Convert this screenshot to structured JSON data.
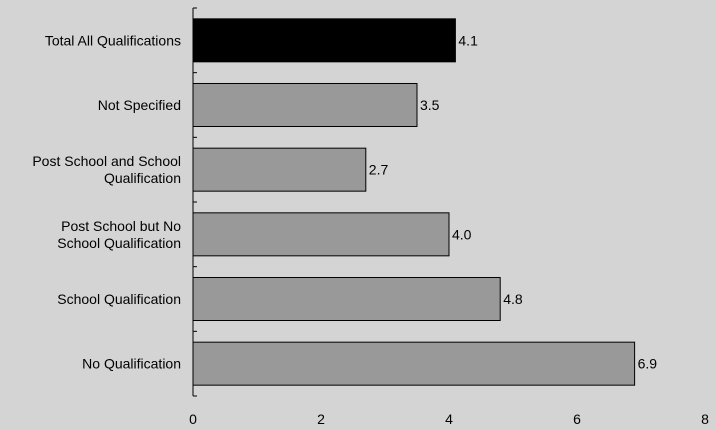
{
  "chart_data": {
    "type": "bar",
    "orientation": "horizontal",
    "categories": [
      [
        "Total All Qualifications"
      ],
      [
        "Not Specified"
      ],
      [
        "Post School and School",
        "Qualification"
      ],
      [
        "Post School but No",
        "School Qualification"
      ],
      [
        "School Qualification"
      ],
      [
        "No Qualification"
      ]
    ],
    "values": [
      4.1,
      3.5,
      2.7,
      4.0,
      4.8,
      6.9
    ],
    "value_labels": [
      "4.1",
      "3.5",
      "2.7",
      "4.0",
      "4.8",
      "6.9"
    ],
    "bar_colors": [
      "#000000",
      "#999999",
      "#999999",
      "#999999",
      "#999999",
      "#999999"
    ],
    "xlim": [
      0,
      8
    ],
    "xticks": [
      0,
      2,
      4,
      6,
      8
    ],
    "title": "",
    "xlabel": "",
    "ylabel": "",
    "grid": false,
    "legend": "none",
    "background_color": "#d4d4d4"
  }
}
